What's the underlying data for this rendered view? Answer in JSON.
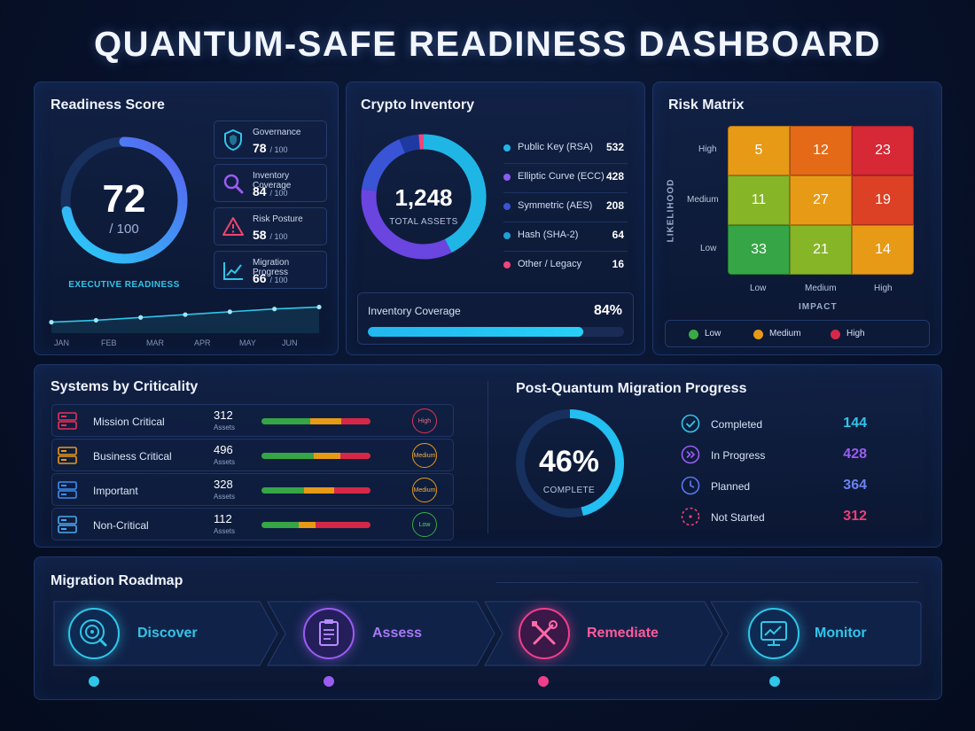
{
  "title": "QUANTUM-SAFE READINESS DASHBOARD",
  "readiness": {
    "title": "Readiness Score",
    "score": "72",
    "score_max": "/ 100",
    "score_value": 72,
    "caption": "EXECUTIVE READINESS",
    "metrics": [
      {
        "label": "Governance",
        "value": "78",
        "max": "/ 100",
        "icon": "shield-icon",
        "color": "#2fc6ea"
      },
      {
        "label": "Inventory Coverage",
        "value": "84",
        "max": "/ 100",
        "icon": "search-icon",
        "color": "#9b5cf2"
      },
      {
        "label": "Risk Posture",
        "value": "58",
        "max": "/ 100",
        "icon": "warning-icon",
        "color": "#f0456e"
      },
      {
        "label": "Migration Progress",
        "value": "66",
        "max": "/ 100",
        "icon": "trend-icon",
        "color": "#2fc6ea"
      }
    ],
    "months": [
      "JAN",
      "FEB",
      "MAR",
      "APR",
      "MAY",
      "JUN"
    ],
    "trend": [
      56,
      58,
      61,
      64,
      67,
      70,
      72
    ]
  },
  "crypto": {
    "title": "Crypto Inventory",
    "total": "1,248",
    "total_label": "TOTAL ASSETS",
    "items": [
      {
        "label": "Public Key (RSA)",
        "value": "532",
        "count": 532,
        "color": "#1fb6e6"
      },
      {
        "label": "Elliptic Curve (ECC)",
        "value": "428",
        "count": 428,
        "color": "#6a45e0"
      },
      {
        "label": "Symmetric (AES)",
        "value": "208",
        "count": 208,
        "color": "#3a54d6"
      },
      {
        "label": "Hash (SHA-2)",
        "value": "64",
        "count": 64,
        "color": "#1e3aa0"
      },
      {
        "label": "Other / Legacy",
        "value": "16",
        "count": 16,
        "color": "#f0457a"
      }
    ],
    "coverage_label": "Inventory Coverage",
    "coverage_pct": "84%",
    "coverage_value": 84
  },
  "risk": {
    "title": "Risk Matrix",
    "y_axis": "LIKELIHOOD",
    "x_axis": "IMPACT",
    "rows": [
      "High",
      "Medium",
      "Low"
    ],
    "cols": [
      "Low",
      "Medium",
      "High"
    ],
    "cells": [
      [
        {
          "v": "5",
          "c": "#e79a16"
        },
        {
          "v": "12",
          "c": "#e46a18"
        },
        {
          "v": "23",
          "c": "#d62835"
        }
      ],
      [
        {
          "v": "11",
          "c": "#86b528"
        },
        {
          "v": "27",
          "c": "#e79a16"
        },
        {
          "v": "19",
          "c": "#dc4025"
        }
      ],
      [
        {
          "v": "33",
          "c": "#35a545"
        },
        {
          "v": "21",
          "c": "#86b528"
        },
        {
          "v": "14",
          "c": "#e79a16"
        }
      ]
    ],
    "legend": [
      {
        "label": "Low",
        "color": "#3aab44"
      },
      {
        "label": "Medium",
        "color": "#e79a16"
      },
      {
        "label": "High",
        "color": "#d6284a"
      }
    ]
  },
  "systems": {
    "title": "Systems by Criticality",
    "assets_label": "Assets",
    "rows": [
      {
        "name": "Mission Critical",
        "value": "312",
        "badge": "High",
        "color": "#e5325a",
        "split": [
          45,
          28,
          27
        ]
      },
      {
        "name": "Business Critical",
        "value": "496",
        "badge": "Medium",
        "color": "#e79a16",
        "split": [
          48,
          24,
          28
        ]
      },
      {
        "name": "Important",
        "value": "328",
        "badge": "Medium",
        "color": "#e79a16",
        "split": [
          39,
          28,
          33
        ]
      },
      {
        "name": "Non-Critical",
        "value": "112",
        "badge": "Low",
        "color": "#3aab44",
        "split": [
          34,
          16,
          50
        ]
      }
    ]
  },
  "pq": {
    "title": "Post-Quantum Migration Progress",
    "pct": "46%",
    "pct_value": 46,
    "caption": "COMPLETE",
    "rows": [
      {
        "label": "Completed",
        "value": "144",
        "color": "#2fc6ea",
        "icon": "check-icon"
      },
      {
        "label": "In Progress",
        "value": "428",
        "color": "#9b5cf2",
        "icon": "forward-icon"
      },
      {
        "label": "Planned",
        "value": "364",
        "color": "#5b76f0",
        "icon": "clock-icon"
      },
      {
        "label": "Not Started",
        "value": "312",
        "color": "#ef3f78",
        "icon": "dashed-circle-icon"
      }
    ]
  },
  "roadmap": {
    "title": "Migration Roadmap",
    "steps": [
      {
        "label": "Discover",
        "color": "#2fc6ea",
        "icon": "radar-icon"
      },
      {
        "label": "Assess",
        "color": "#9b5cf2",
        "icon": "clipboard-icon"
      },
      {
        "label": "Remediate",
        "color": "#ef3f8c",
        "icon": "tools-icon"
      },
      {
        "label": "Monitor",
        "color": "#2fc6ea",
        "icon": "monitor-icon"
      }
    ]
  }
}
